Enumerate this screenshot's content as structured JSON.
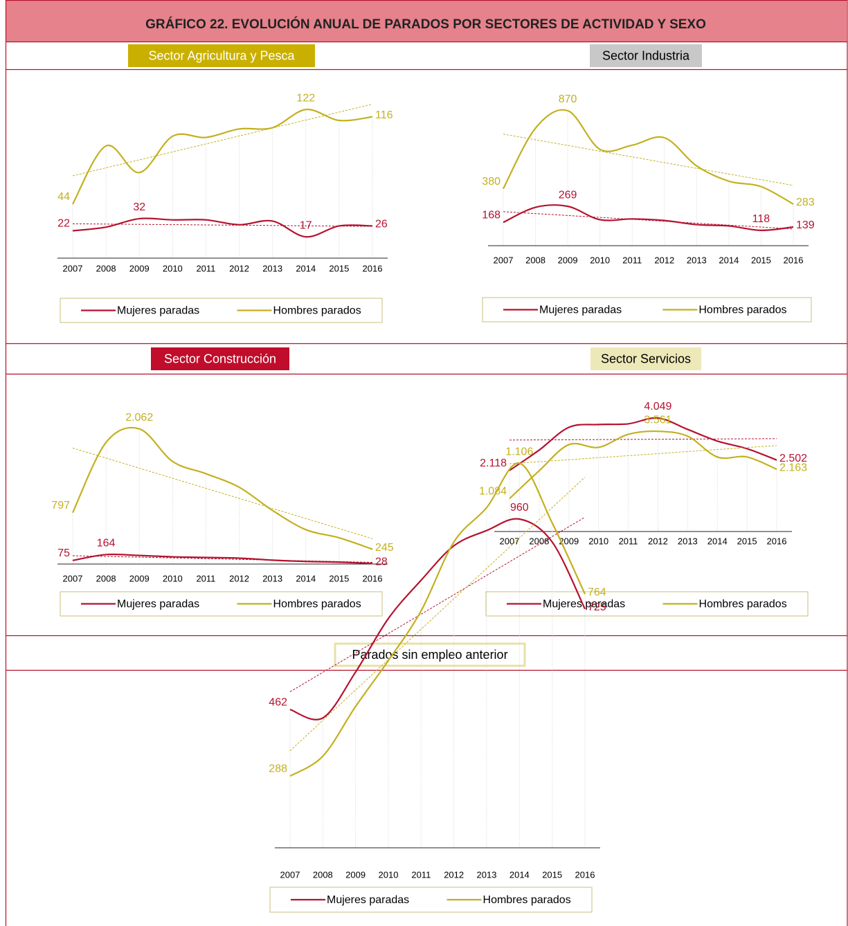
{
  "header": {
    "title": "GRÁFICO 22. EVOLUCIÓN ANUAL DE PARADOS POR SECTORES DE ACTIVIDAD Y SEXO"
  },
  "chart_data": [
    {
      "type": "line",
      "title": "Sector Agricultura y Pesca",
      "legend": "bottom",
      "trendline": true,
      "categories": [
        "2007",
        "2008",
        "2009",
        "2010",
        "2011",
        "2012",
        "2013",
        "2014",
        "2015",
        "2016"
      ],
      "ylim": [
        0,
        125
      ],
      "series": [
        {
          "name": "Mujeres paradas",
          "color": "#b5122f",
          "values": [
            22,
            25,
            32,
            31,
            31,
            27,
            30,
            17,
            26,
            26
          ],
          "value_labels": [
            "22",
            null,
            "32",
            null,
            null,
            null,
            null,
            "17",
            null,
            "26"
          ]
        },
        {
          "name": "Hombres parados",
          "color": "#c3b01e",
          "values": [
            44,
            92,
            70,
            100,
            99,
            106,
            107,
            122,
            113,
            116
          ],
          "value_labels": [
            "44",
            null,
            null,
            null,
            null,
            null,
            null,
            "122",
            null,
            "116"
          ]
        }
      ]
    },
    {
      "type": "line",
      "title": "Sector Industria",
      "legend": "bottom",
      "trendline": true,
      "categories": [
        "2007",
        "2008",
        "2009",
        "2010",
        "2011",
        "2012",
        "2013",
        "2014",
        "2015",
        "2016"
      ],
      "ylim": [
        0,
        900
      ],
      "series": [
        {
          "name": "Mujeres paradas",
          "color": "#b5122f",
          "values": [
            168,
            263,
            269,
            185,
            190,
            180,
            154,
            146,
            118,
            139
          ],
          "value_labels": [
            "168",
            null,
            "269",
            null,
            null,
            null,
            null,
            null,
            "118",
            "139"
          ]
        },
        {
          "name": "Hombres parados",
          "color": "#c3b01e",
          "values": [
            380,
            760,
            870,
            627,
            653,
            700,
            523,
            427,
            393,
            283
          ],
          "value_labels": [
            "380",
            null,
            "870",
            null,
            null,
            null,
            null,
            null,
            null,
            "283"
          ]
        }
      ]
    },
    {
      "type": "line",
      "title": "Sector Construcción",
      "legend": "bottom",
      "trendline": true,
      "categories": [
        "2007",
        "2008",
        "2009",
        "2010",
        "2011",
        "2012",
        "2013",
        "2014",
        "2015",
        "2016"
      ],
      "ylim": [
        0,
        2100
      ],
      "series": [
        {
          "name": "Mujeres paradas",
          "color": "#b5122f",
          "values": [
            75,
            164,
            150,
            130,
            120,
            110,
            80,
            60,
            50,
            28
          ],
          "value_labels": [
            "75",
            "164",
            null,
            null,
            null,
            null,
            null,
            null,
            null,
            "28"
          ]
        },
        {
          "name": "Hombres parados",
          "color": "#c3b01e",
          "values": [
            797,
            1857,
            2062,
            1570,
            1385,
            1180,
            830,
            540,
            417,
            245
          ],
          "value_labels": [
            "797",
            null,
            "2.062",
            null,
            null,
            null,
            null,
            null,
            null,
            "245"
          ]
        }
      ]
    },
    {
      "type": "line",
      "title": "Sector Servicios",
      "legend": "bottom",
      "trendline": true,
      "categories": [
        "2007",
        "2008",
        "2009",
        "2010",
        "2011",
        "2012",
        "2013",
        "2014",
        "2015",
        "2016"
      ],
      "ylim": [
        0,
        4100
      ],
      "series": [
        {
          "name": "Mujeres paradas",
          "color": "#b5122f",
          "values": [
            2118,
            2870,
            3706,
            3810,
            3835,
            4049,
            3630,
            3200,
            2920,
            2502
          ],
          "value_labels": [
            "2.118",
            null,
            null,
            null,
            null,
            "4.049",
            null,
            null,
            null,
            "2.502"
          ]
        },
        {
          "name": "Hombres parados",
          "color": "#c3b01e",
          "values": [
            1084,
            2110,
            3070,
            2970,
            3450,
            3561,
            3380,
            2615,
            2615,
            2163
          ],
          "value_labels": [
            "1.084",
            null,
            null,
            null,
            null,
            "3.561",
            null,
            null,
            null,
            "2.163"
          ]
        }
      ]
    },
    {
      "type": "line",
      "title": "Parados sin empleo anterior",
      "legend": "bottom",
      "trendline": true,
      "categories": [
        "2007",
        "2008",
        "2009",
        "2010",
        "2011",
        "2012",
        "2013",
        "2014",
        "2015",
        "2016"
      ],
      "ylim": [
        200,
        1150
      ],
      "series": [
        {
          "name": "Mujeres paradas",
          "color": "#b5122f",
          "values": [
            462,
            440,
            560,
            700,
            800,
            890,
            930,
            960,
            900,
            725
          ],
          "value_labels": [
            "462",
            null,
            null,
            null,
            null,
            null,
            null,
            "960",
            null,
            "725"
          ]
        },
        {
          "name": "Hombres parados",
          "color": "#c3b01e",
          "values": [
            288,
            340,
            470,
            590,
            720,
            900,
            990,
            1106,
            950,
            764
          ],
          "value_labels": [
            "288",
            null,
            null,
            null,
            null,
            null,
            null,
            "1.106",
            null,
            "764"
          ]
        }
      ]
    }
  ]
}
